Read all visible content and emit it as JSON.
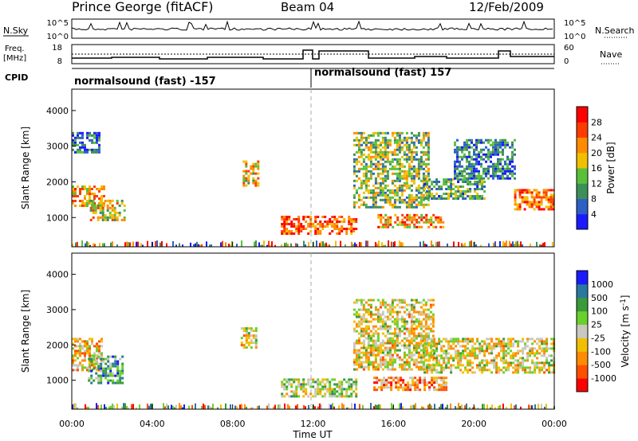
{
  "header": {
    "station": "Prince George (fitACF)",
    "beam": "Beam 04",
    "date": "12/Feb/2009"
  },
  "panels": {
    "nsky": {
      "label": "N.Sky",
      "ticks": [
        "10^5",
        "10^0"
      ],
      "right_label": "N.Search",
      "right_ticks": [
        "10^5",
        "10^0"
      ]
    },
    "freq": {
      "label_line1": "Freq.",
      "label_line2": "[MHz]",
      "ticks": [
        "18",
        "8"
      ],
      "right_label": "Nave",
      "right_ticks": [
        "60",
        "0"
      ]
    },
    "cpid": {
      "label": "CPID",
      "segments": [
        "normalsound (fast) -157",
        "normalsound (fast) 157"
      ]
    }
  },
  "colors": {
    "power": [
      "#1a1aff",
      "#2e5fc4",
      "#3d8f5a",
      "#5ac03a",
      "#f0c000",
      "#ff8c00",
      "#ff3c00",
      "#ff0000"
    ],
    "velocity": [
      "#1a1aff",
      "#2a78a0",
      "#3a9a3a",
      "#6ad02a",
      "#c8c8c0",
      "#f0c000",
      "#ff8c00",
      "#ff5000",
      "#ff0000"
    ],
    "range_gate_noise": "#3d8f5a"
  },
  "chart_data": [
    {
      "type": "heatmap",
      "name": "power",
      "xlabel": "Time UT",
      "ylabel": "Slant Range [km]",
      "x_ticks": [
        "00:00",
        "04:00",
        "08:00",
        "12:00",
        "16:00",
        "20:00",
        "00:00"
      ],
      "xlim_hours": [
        0,
        24
      ],
      "ylim": [
        180,
        4600
      ],
      "y_ticks": [
        1000,
        2000,
        3000,
        4000
      ],
      "colorbar": {
        "label": "Power [dB]",
        "ticks": [
          "4",
          "8",
          "12",
          "16",
          "20",
          "24",
          "28"
        ],
        "range": [
          0,
          32
        ]
      },
      "marker_hour": 12,
      "regions": [
        {
          "t0": 0.0,
          "t1": 1.6,
          "r0": 1300,
          "r1": 1900,
          "level": 0.65
        },
        {
          "t0": 0.0,
          "t1": 1.4,
          "r0": 2800,
          "r1": 3400,
          "level": 0.2
        },
        {
          "t0": 0.9,
          "t1": 2.6,
          "r0": 900,
          "r1": 1500,
          "level": 0.55
        },
        {
          "t0": 8.5,
          "t1": 9.3,
          "r0": 1900,
          "r1": 2600,
          "level": 0.6
        },
        {
          "t0": 10.4,
          "t1": 14.2,
          "r0": 550,
          "r1": 1050,
          "level": 0.8
        },
        {
          "t0": 14.0,
          "t1": 17.8,
          "r0": 1300,
          "r1": 3400,
          "level": 0.45
        },
        {
          "t0": 15.2,
          "t1": 18.5,
          "r0": 750,
          "r1": 1100,
          "level": 0.7
        },
        {
          "t0": 17.5,
          "t1": 20.5,
          "r0": 1500,
          "r1": 2100,
          "level": 0.35
        },
        {
          "t0": 19.0,
          "t1": 22.0,
          "r0": 2100,
          "r1": 3200,
          "level": 0.25
        },
        {
          "t0": 22.0,
          "t1": 24.0,
          "r0": 1200,
          "r1": 1800,
          "level": 0.75
        }
      ]
    },
    {
      "type": "heatmap",
      "name": "velocity",
      "xlabel": "Time UT",
      "ylabel": "Slant Range [km]",
      "x_ticks": [
        "00:00",
        "04:00",
        "08:00",
        "12:00",
        "16:00",
        "20:00",
        "00:00"
      ],
      "xlim_hours": [
        0,
        24
      ],
      "ylim": [
        180,
        4600
      ],
      "y_ticks": [
        1000,
        2000,
        3000,
        4000
      ],
      "colorbar": {
        "label": "Velocity [m s^-1]",
        "ticks": [
          "1000",
          "500",
          "100",
          "25",
          "-25",
          "-100",
          "-500",
          "-1000"
        ]
      },
      "marker_hour": 12,
      "regions": [
        {
          "t0": 0.0,
          "t1": 1.5,
          "r0": 1300,
          "r1": 2200,
          "level": 0.4
        },
        {
          "t0": 0.8,
          "t1": 2.5,
          "r0": 900,
          "r1": 1700,
          "level": 0.7
        },
        {
          "t0": 8.4,
          "t1": 9.2,
          "r0": 1900,
          "r1": 2500,
          "level": 0.45
        },
        {
          "t0": 10.4,
          "t1": 14.2,
          "r0": 550,
          "r1": 1050,
          "level": 0.55
        },
        {
          "t0": 14.0,
          "t1": 18.0,
          "r0": 1300,
          "r1": 3300,
          "level": 0.45
        },
        {
          "t0": 15.0,
          "t1": 18.6,
          "r0": 700,
          "r1": 1100,
          "level": 0.3
        },
        {
          "t0": 17.5,
          "t1": 24.0,
          "r0": 1200,
          "r1": 2200,
          "level": 0.45
        }
      ]
    }
  ]
}
